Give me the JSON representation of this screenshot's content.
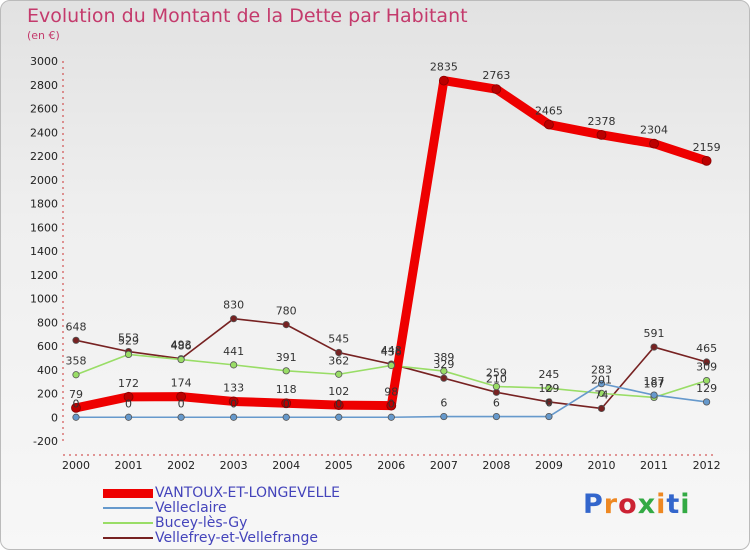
{
  "header": {
    "title": "Evolution du Montant de la Dette par Habitant",
    "subtitle": "(en €)"
  },
  "logo": {
    "text": "Proxiti",
    "colors": [
      "#3366cc",
      "#ee8822",
      "#cc2233",
      "#33aa44",
      "#ee8822",
      "#3366cc",
      "#33aa44"
    ]
  },
  "chart_data": {
    "type": "line",
    "title": "Evolution du Montant de la Dette par Habitant",
    "subtitle": "(en €)",
    "xlabel": "",
    "ylabel": "",
    "x": [
      "2000",
      "2001",
      "2002",
      "2003",
      "2004",
      "2005",
      "2006",
      "2007",
      "2008",
      "2009",
      "2010",
      "2011",
      "2012"
    ],
    "ylim": [
      -200,
      3000
    ],
    "yticks": [
      -200,
      0,
      200,
      400,
      600,
      800,
      1000,
      1200,
      1400,
      1600,
      1800,
      2000,
      2200,
      2400,
      2600,
      2800,
      3000
    ],
    "grid": false,
    "legend_position": "bottom-left",
    "series": [
      {
        "name": "VANTOUX-ET-LONGEVELLE",
        "color": "#ee0000",
        "values": [
          79,
          172,
          174,
          133,
          118,
          102,
          98,
          2835,
          2763,
          2465,
          2378,
          2304,
          2159
        ],
        "labels": [
          "79",
          "172",
          "174",
          "133",
          "118",
          "102",
          "98",
          "2835",
          "2763",
          "2465",
          "2378",
          "2304",
          "2159"
        ]
      },
      {
        "name": "Velleclaire",
        "color": "#6699cc",
        "values": [
          0,
          0,
          0,
          0,
          0,
          0,
          0,
          6,
          6,
          6,
          283,
          187,
          129
        ],
        "labels": [
          "0",
          "0",
          "0",
          "0",
          "0",
          "0",
          "0",
          "6",
          "6",
          "6",
          "283",
          "187",
          "129"
        ]
      },
      {
        "name": "Bucey-lès-Gy",
        "color": "#99dd66",
        "values": [
          358,
          529,
          486,
          441,
          391,
          362,
          436,
          389,
          259,
          245,
          201,
          167,
          309
        ],
        "labels": [
          "358",
          "529",
          "486",
          "441",
          "391",
          "362",
          "436",
          "389",
          "259",
          "245",
          "201",
          "167",
          "309"
        ]
      },
      {
        "name": "Vellefrey-et-Vellefrange",
        "color": "#772222",
        "values": [
          648,
          553,
          493,
          830,
          780,
          545,
          448,
          329,
          210,
          129,
          74,
          591,
          465
        ],
        "labels": [
          "648",
          "553",
          "493",
          "830",
          "780",
          "545",
          "448",
          "329",
          "210",
          "129",
          "74",
          "591",
          "465"
        ]
      }
    ]
  }
}
